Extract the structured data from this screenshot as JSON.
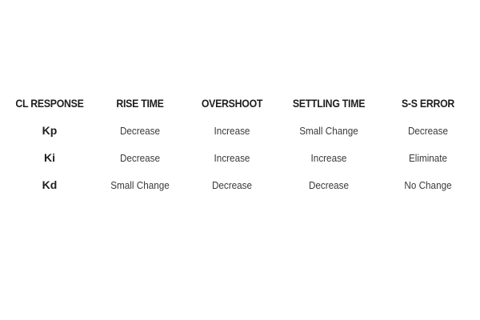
{
  "table": {
    "headers": [
      "CL RESPONSE",
      "RISE TIME",
      "OVERSHOOT",
      "SETTLING TIME",
      "S-S ERROR"
    ],
    "rows": [
      {
        "label": "Kp",
        "cells": [
          "Decrease",
          "Increase",
          "Small Change",
          "Decrease"
        ]
      },
      {
        "label": "Ki",
        "cells": [
          "Decrease",
          "Increase",
          "Increase",
          "Eliminate"
        ]
      },
      {
        "label": "Kd",
        "cells": [
          "Small Change",
          "Decrease",
          "Decrease",
          "No Change"
        ]
      }
    ]
  }
}
